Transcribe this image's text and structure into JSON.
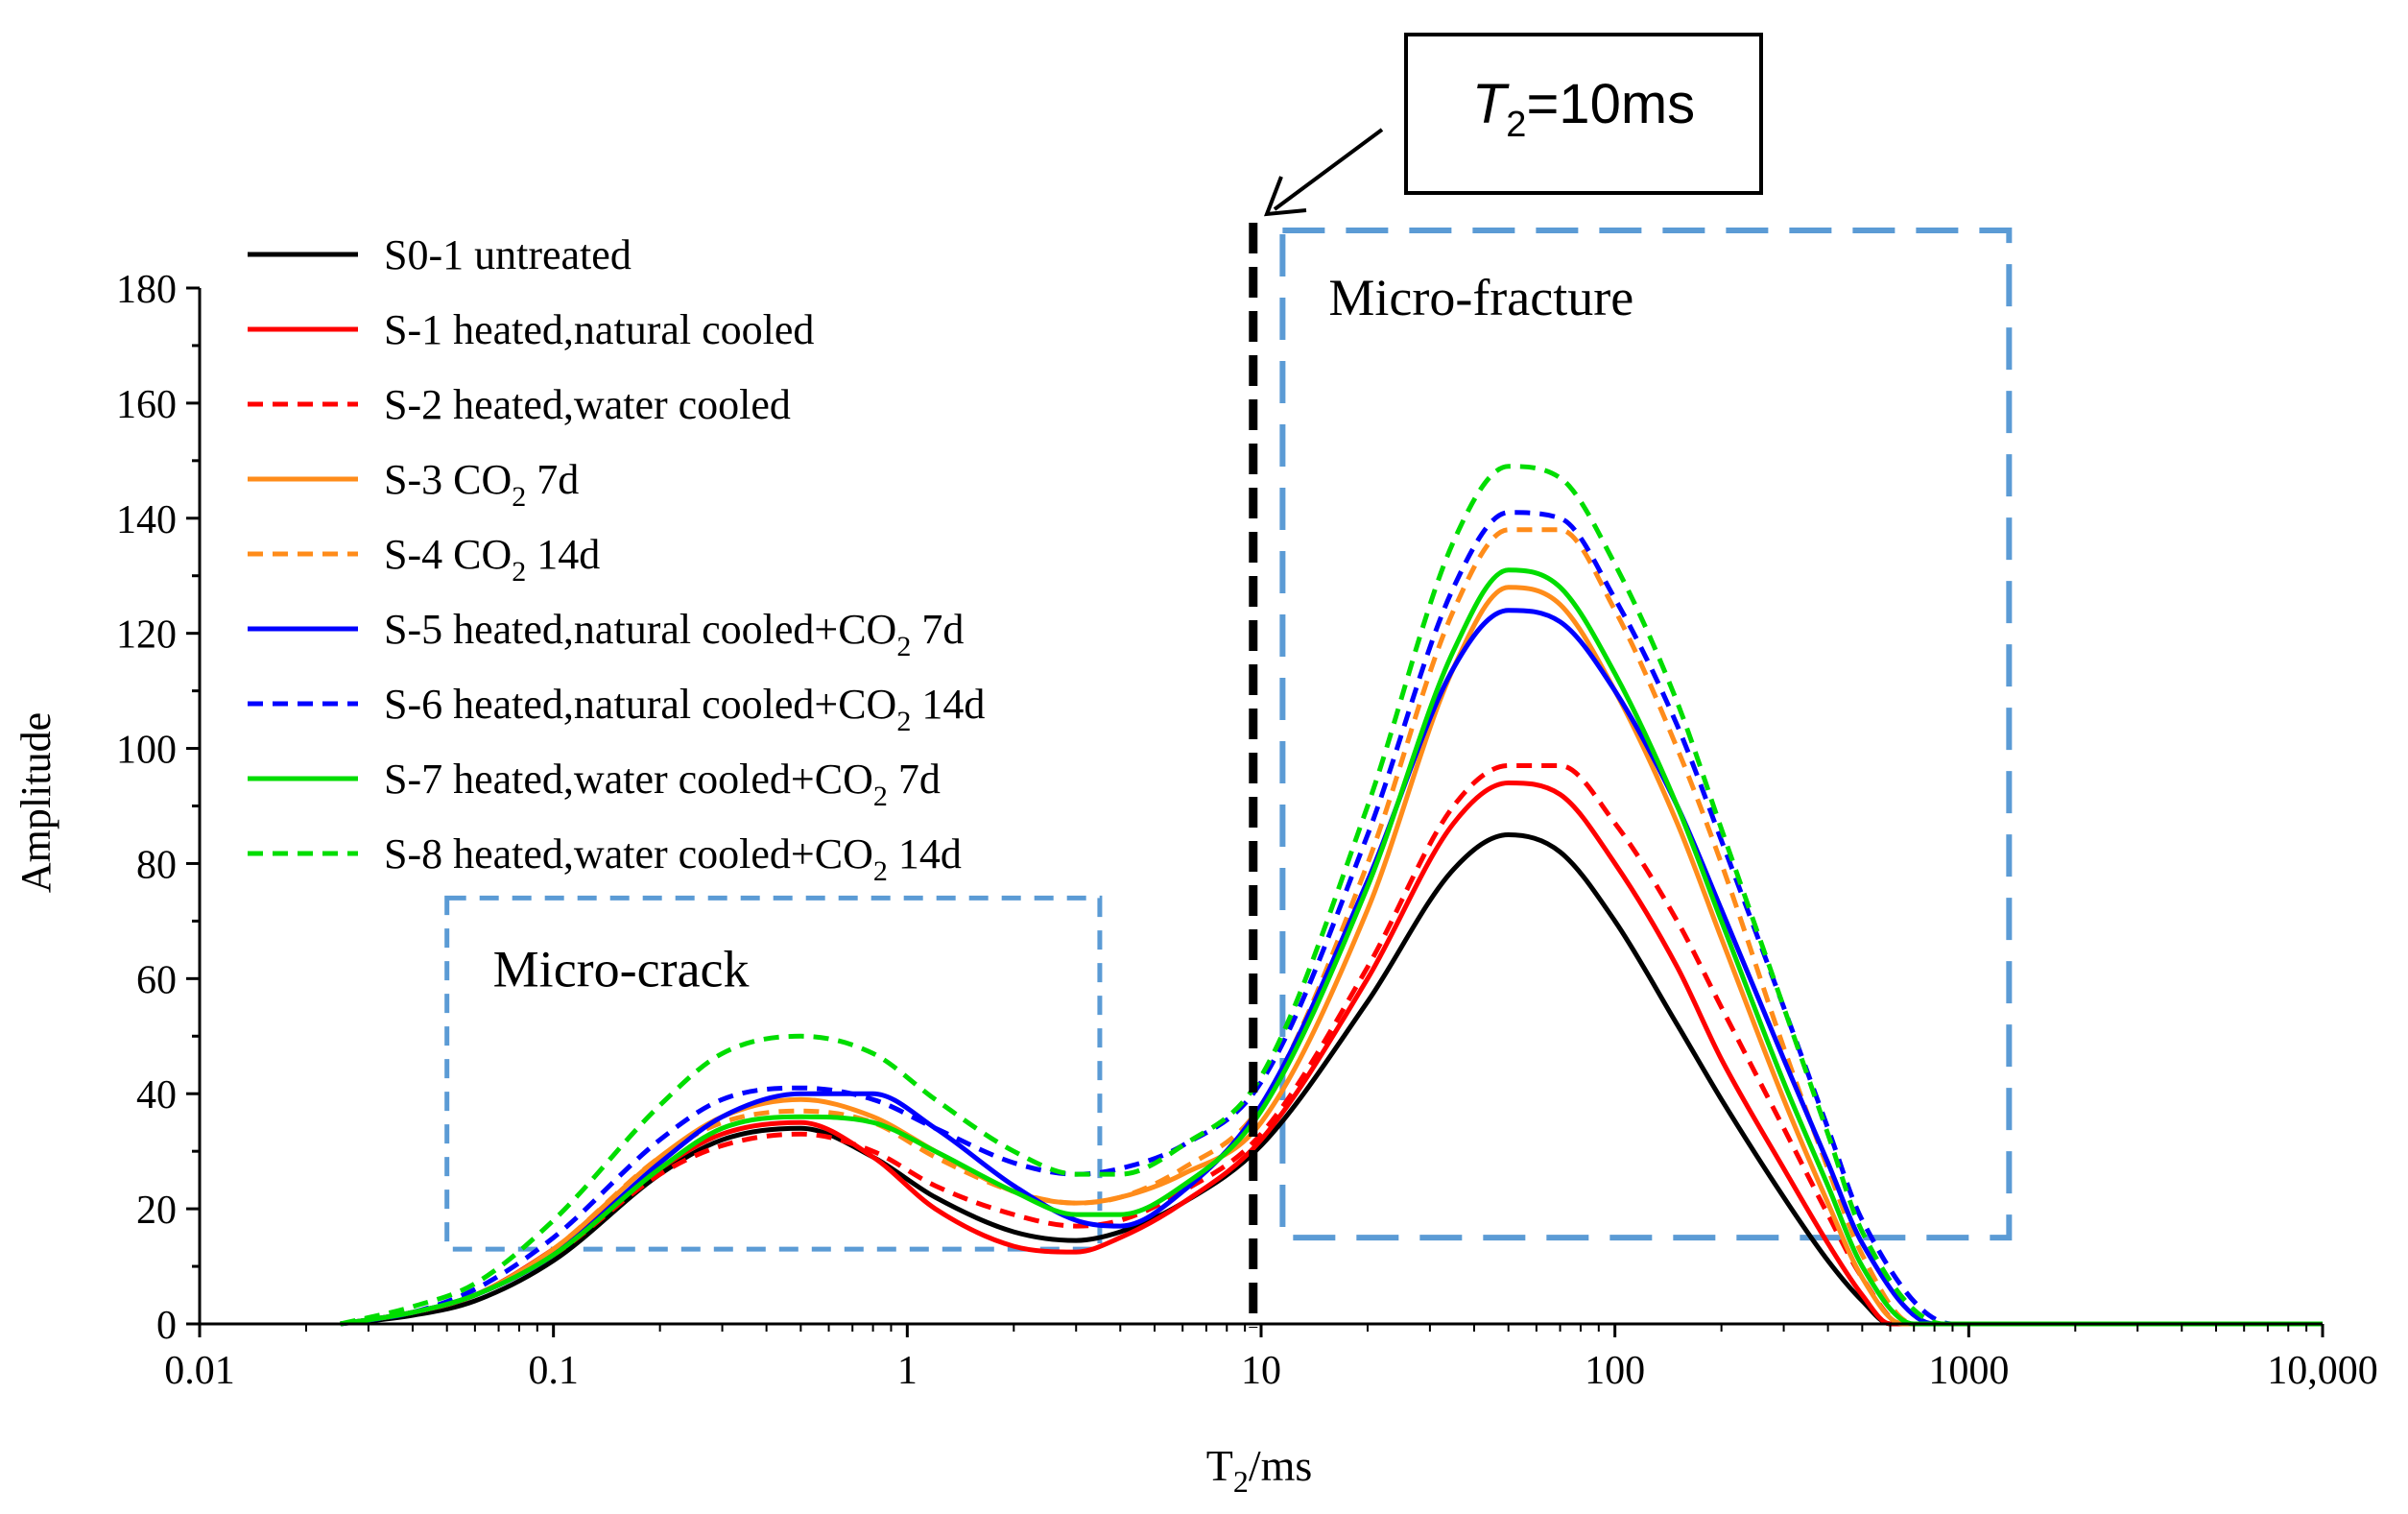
{
  "chart_data": {
    "type": "line",
    "xlabel": {
      "main": "T",
      "sub": "2",
      "rest": "/ms"
    },
    "ylabel": "Amplitude",
    "x_scale": "log",
    "xlim": [
      0.01,
      10000
    ],
    "ylim": [
      0,
      180
    ],
    "x_ticks": [
      {
        "value": 0.01,
        "label": "0.01"
      },
      {
        "value": 0.1,
        "label": "0.1"
      },
      {
        "value": 1,
        "label": "1"
      },
      {
        "value": 10,
        "label": "10"
      },
      {
        "value": 100,
        "label": "100"
      },
      {
        "value": 1000,
        "label": "1000"
      },
      {
        "value": 10000,
        "label": "10,000"
      }
    ],
    "y_ticks": [
      0,
      20,
      40,
      60,
      80,
      100,
      120,
      140,
      160,
      180
    ],
    "grid": false,
    "legend_position": "top-left",
    "series": [
      {
        "name": "S0-1  untreated",
        "label": {
          "pre": "S0-1  untreated"
        },
        "color": "#000000",
        "dash": false,
        "points": [
          [
            0.025,
            0
          ],
          [
            0.04,
            1.5
          ],
          [
            0.06,
            4
          ],
          [
            0.1,
            11
          ],
          [
            0.2,
            26
          ],
          [
            0.3,
            32
          ],
          [
            0.5,
            34
          ],
          [
            0.8,
            29
          ],
          [
            1.2,
            22
          ],
          [
            2,
            16
          ],
          [
            3,
            14.5
          ],
          [
            4,
            16
          ],
          [
            6,
            21
          ],
          [
            10,
            31
          ],
          [
            20,
            56
          ],
          [
            35,
            79
          ],
          [
            50,
            85
          ],
          [
            70,
            82
          ],
          [
            100,
            70
          ],
          [
            150,
            52
          ],
          [
            200,
            39
          ],
          [
            300,
            22
          ],
          [
            400,
            11
          ],
          [
            500,
            4
          ],
          [
            600,
            0
          ],
          [
            10000,
            0
          ]
        ]
      },
      {
        "name": "S-1  heated,natural cooled",
        "label": {
          "pre": "S-1  heated,natural cooled"
        },
        "color": "#ff0000",
        "dash": false,
        "points": [
          [
            0.025,
            0
          ],
          [
            0.04,
            2
          ],
          [
            0.06,
            5
          ],
          [
            0.1,
            13
          ],
          [
            0.2,
            27
          ],
          [
            0.3,
            33
          ],
          [
            0.5,
            35
          ],
          [
            0.8,
            29
          ],
          [
            1.2,
            20
          ],
          [
            2,
            13.5
          ],
          [
            3,
            12.5
          ],
          [
            4,
            15
          ],
          [
            6,
            21
          ],
          [
            10,
            32
          ],
          [
            20,
            60
          ],
          [
            35,
            87
          ],
          [
            50,
            94
          ],
          [
            70,
            92
          ],
          [
            100,
            80
          ],
          [
            150,
            62
          ],
          [
            200,
            46
          ],
          [
            300,
            27
          ],
          [
            400,
            14
          ],
          [
            500,
            5
          ],
          [
            600,
            0
          ],
          [
            10000,
            0
          ]
        ]
      },
      {
        "name": "S-2  heated,water cooled",
        "label": {
          "pre": "S-2  heated,water cooled"
        },
        "color": "#ff0000",
        "dash": true,
        "points": [
          [
            0.025,
            0
          ],
          [
            0.04,
            2
          ],
          [
            0.06,
            5
          ],
          [
            0.1,
            12
          ],
          [
            0.2,
            26
          ],
          [
            0.3,
            31
          ],
          [
            0.5,
            33
          ],
          [
            0.8,
            30
          ],
          [
            1.2,
            24
          ],
          [
            2,
            19
          ],
          [
            3,
            17
          ],
          [
            4,
            18
          ],
          [
            6,
            23
          ],
          [
            10,
            33
          ],
          [
            20,
            62
          ],
          [
            35,
            90
          ],
          [
            50,
            97
          ],
          [
            70,
            97
          ],
          [
            100,
            87
          ],
          [
            150,
            70
          ],
          [
            200,
            55
          ],
          [
            300,
            34
          ],
          [
            400,
            19
          ],
          [
            500,
            8
          ],
          [
            650,
            0
          ],
          [
            10000,
            0
          ]
        ]
      },
      {
        "name": "S-3  CO2  7d",
        "label": {
          "pre": "S-3  CO",
          "sub": "2",
          "post": "  7d"
        },
        "color": "#ff8c1a",
        "dash": false,
        "points": [
          [
            0.025,
            0
          ],
          [
            0.04,
            2
          ],
          [
            0.06,
            5
          ],
          [
            0.1,
            13
          ],
          [
            0.2,
            29
          ],
          [
            0.3,
            36
          ],
          [
            0.5,
            39
          ],
          [
            0.8,
            36
          ],
          [
            1.2,
            30
          ],
          [
            2,
            23
          ],
          [
            3,
            21
          ],
          [
            4,
            22
          ],
          [
            6,
            26
          ],
          [
            10,
            35
          ],
          [
            20,
            72
          ],
          [
            35,
            114
          ],
          [
            50,
            128
          ],
          [
            70,
            125
          ],
          [
            100,
            110
          ],
          [
            150,
            87
          ],
          [
            200,
            67
          ],
          [
            300,
            39
          ],
          [
            400,
            21
          ],
          [
            500,
            8
          ],
          [
            650,
            0
          ],
          [
            10000,
            0
          ]
        ]
      },
      {
        "name": "S-4  CO2  14d",
        "label": {
          "pre": "S-4  CO",
          "sub": "2",
          "post": "  14d"
        },
        "color": "#ff8c1a",
        "dash": true,
        "points": [
          [
            0.025,
            0
          ],
          [
            0.04,
            2
          ],
          [
            0.06,
            5
          ],
          [
            0.1,
            13
          ],
          [
            0.2,
            29
          ],
          [
            0.3,
            35
          ],
          [
            0.5,
            37
          ],
          [
            0.8,
            35
          ],
          [
            1.2,
            29
          ],
          [
            2,
            23
          ],
          [
            3,
            21
          ],
          [
            4,
            22
          ],
          [
            6,
            27
          ],
          [
            10,
            38
          ],
          [
            20,
            80
          ],
          [
            35,
            124
          ],
          [
            50,
            138
          ],
          [
            70,
            138
          ],
          [
            100,
            124
          ],
          [
            150,
            100
          ],
          [
            200,
            80
          ],
          [
            300,
            48
          ],
          [
            400,
            27
          ],
          [
            500,
            12
          ],
          [
            700,
            0
          ],
          [
            10000,
            0
          ]
        ]
      },
      {
        "name": "S-5  heated,natural cooled+CO2  7d",
        "label": {
          "pre": "S-5  heated,natural cooled+CO",
          "sub": "2",
          "post": "  7d"
        },
        "color": "#0000ff",
        "dash": false,
        "points": [
          [
            0.025,
            0
          ],
          [
            0.04,
            2
          ],
          [
            0.06,
            5
          ],
          [
            0.1,
            12
          ],
          [
            0.2,
            28
          ],
          [
            0.3,
            36
          ],
          [
            0.5,
            40
          ],
          [
            0.8,
            40
          ],
          [
            1.2,
            34
          ],
          [
            2,
            24
          ],
          [
            3,
            18
          ],
          [
            4,
            17
          ],
          [
            6,
            23
          ],
          [
            10,
            38
          ],
          [
            20,
            77
          ],
          [
            35,
            114
          ],
          [
            50,
            124
          ],
          [
            70,
            122
          ],
          [
            100,
            110
          ],
          [
            150,
            90
          ],
          [
            200,
            72
          ],
          [
            300,
            46
          ],
          [
            400,
            28
          ],
          [
            500,
            14
          ],
          [
            800,
            0
          ],
          [
            10000,
            0
          ]
        ]
      },
      {
        "name": "S-6  heated,natural cooled+CO2  14d",
        "label": {
          "pre": "S-6  heated,natural cooled+CO",
          "sub": "2",
          "post": "  14d"
        },
        "color": "#0000ff",
        "dash": true,
        "points": [
          [
            0.025,
            0
          ],
          [
            0.04,
            2
          ],
          [
            0.06,
            6
          ],
          [
            0.1,
            15
          ],
          [
            0.2,
            32
          ],
          [
            0.3,
            39
          ],
          [
            0.5,
            41
          ],
          [
            0.8,
            39
          ],
          [
            1.2,
            34
          ],
          [
            2,
            28
          ],
          [
            3,
            26
          ],
          [
            4,
            27
          ],
          [
            6,
            31
          ],
          [
            10,
            42
          ],
          [
            20,
            85
          ],
          [
            35,
            128
          ],
          [
            50,
            141
          ],
          [
            70,
            140
          ],
          [
            100,
            126
          ],
          [
            150,
            104
          ],
          [
            200,
            84
          ],
          [
            300,
            55
          ],
          [
            400,
            34
          ],
          [
            500,
            18
          ],
          [
            900,
            0
          ],
          [
            10000,
            0
          ]
        ]
      },
      {
        "name": "S-7  heated,water cooled+CO2  7d",
        "label": {
          "pre": "S-7  heated,water cooled+CO",
          "sub": "2",
          "post": "  7d"
        },
        "color": "#00dd00",
        "dash": false,
        "points": [
          [
            0.025,
            0
          ],
          [
            0.04,
            2
          ],
          [
            0.06,
            5
          ],
          [
            0.1,
            12
          ],
          [
            0.2,
            27
          ],
          [
            0.3,
            34
          ],
          [
            0.5,
            36
          ],
          [
            0.8,
            35
          ],
          [
            1.2,
            30
          ],
          [
            2,
            23
          ],
          [
            3,
            19
          ],
          [
            4,
            19
          ],
          [
            6,
            24
          ],
          [
            10,
            37
          ],
          [
            20,
            76
          ],
          [
            35,
            117
          ],
          [
            50,
            131
          ],
          [
            70,
            128
          ],
          [
            100,
            113
          ],
          [
            150,
            90
          ],
          [
            200,
            70
          ],
          [
            300,
            42
          ],
          [
            400,
            24
          ],
          [
            500,
            10
          ],
          [
            700,
            0
          ],
          [
            10000,
            0
          ]
        ]
      },
      {
        "name": "S-8  heated,water cooled+CO2  14d",
        "label": {
          "pre": "S-8  heated,water cooled+CO",
          "sub": "2",
          "post": "  14d"
        },
        "color": "#00dd00",
        "dash": true,
        "points": [
          [
            0.025,
            0
          ],
          [
            0.04,
            3
          ],
          [
            0.06,
            7
          ],
          [
            0.1,
            18
          ],
          [
            0.2,
            38
          ],
          [
            0.3,
            47
          ],
          [
            0.5,
            50
          ],
          [
            0.8,
            47
          ],
          [
            1.2,
            39
          ],
          [
            2,
            30
          ],
          [
            3,
            26
          ],
          [
            4,
            26
          ],
          [
            6,
            31
          ],
          [
            10,
            43
          ],
          [
            20,
            90
          ],
          [
            35,
            136
          ],
          [
            50,
            149
          ],
          [
            70,
            147
          ],
          [
            100,
            132
          ],
          [
            150,
            108
          ],
          [
            200,
            86
          ],
          [
            300,
            55
          ],
          [
            400,
            33
          ],
          [
            500,
            16
          ],
          [
            850,
            0
          ],
          [
            10000,
            0
          ]
        ]
      }
    ],
    "annotations": {
      "t2_line": {
        "x": 9.5,
        "label_main": "T",
        "label_sub": "2",
        "label_rest": "=10ms"
      },
      "micro_crack": {
        "label": "Micro-crack",
        "x_range": [
          0.05,
          3.5
        ],
        "y_range": [
          13,
          74
        ]
      },
      "micro_fracture": {
        "label": "Micro-fracture",
        "x_range": [
          11.5,
          1300
        ],
        "y_range": [
          15,
          190
        ]
      }
    },
    "colors": {
      "box": "#5b9bd5",
      "axis": "#000000",
      "t2_line": "#000000"
    }
  }
}
